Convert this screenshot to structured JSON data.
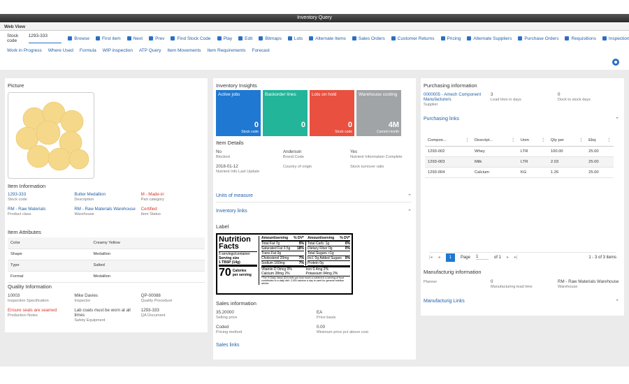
{
  "window": {
    "title": "Inventory Query",
    "tab": "Web View"
  },
  "toolbar": {
    "stock_code_label": "Stock code",
    "stock_code_value": "1293-333",
    "buttons": [
      "Browse",
      "First item",
      "Next",
      "Prev",
      "Find Stock Code",
      "Play",
      "Edit",
      "Bitmaps",
      "Lots",
      "Alternate Items",
      "Sales Orders",
      "Customer Returns",
      "Pricing",
      "Alternate Suppliers",
      "Purchase Orders",
      "Requisitions",
      "Inspection"
    ],
    "links": [
      "Work in Progress",
      "Where Used",
      "Formula",
      "WIP inspection",
      "ATP Query",
      "Item Movements",
      "Item Requirements",
      "Forecast"
    ]
  },
  "left": {
    "picture_title": "Picture",
    "item_information": {
      "title": "Item Information",
      "fields": [
        {
          "value": "1293-333",
          "label": "Stock code"
        },
        {
          "value": "Butter Medallion",
          "label": "Description"
        },
        {
          "value": "M - Made-in",
          "label": "Part category"
        },
        {
          "value": "RM - Raw Materials",
          "label": "Product class"
        },
        {
          "value": "RM - Raw Materials Warehouse",
          "label": "Warehouse"
        },
        {
          "value": "Certified",
          "label": "Item Status"
        }
      ]
    },
    "item_attributes": {
      "title": "Item Attributes",
      "rows": [
        [
          "Color",
          "Creamy Yellow"
        ],
        [
          "Shape",
          "Medallion"
        ],
        [
          "Type",
          "Salted"
        ],
        [
          "Format",
          "Medallion"
        ]
      ]
    },
    "quality": {
      "title": "Quality Information",
      "fields": [
        {
          "value": "10003",
          "label": "Inspection Specification"
        },
        {
          "value": "Mike Davies",
          "label": "Inspector"
        },
        {
          "value": "QP-00088",
          "label": "Quality Procedure"
        },
        {
          "value": "Ensure seals are seamed",
          "label": "Production Notes"
        },
        {
          "value": "Lab coats must be worn at all times",
          "label": "Safety Equipment"
        },
        {
          "value": "1293-333",
          "label": "QA Document"
        }
      ]
    }
  },
  "middle": {
    "title": "Inventory Insights",
    "tiles": [
      {
        "label": "Active jobs",
        "value": "0",
        "sub": "Stock code"
      },
      {
        "label": "Backorder lines",
        "value": "0"
      },
      {
        "label": "Lots on hold",
        "value": "0",
        "sub": "Stock code"
      },
      {
        "label": "Warehouse costing",
        "value": "4M",
        "sub": "Current month"
      }
    ],
    "item_details": {
      "title": "Item Details",
      "fields": [
        {
          "value": "No",
          "label": "Blocked"
        },
        {
          "value": "Anderson",
          "label": "Brand Code"
        },
        {
          "value": "Yes",
          "label": "Nutrient Information Complete"
        },
        {
          "value": "2018-01-12",
          "label": "Nutrient Info Last Update"
        },
        {
          "label": "Country of origin"
        },
        {
          "label": "Stock turnover ratio"
        }
      ]
    },
    "units_link": "Units of measure",
    "inventory_link": "Inventory links",
    "label_title": "Label",
    "nutrition": {
      "title": "Nutrition Facts",
      "servings": "5 servings/container",
      "serving_size": "Serving size",
      "serving_amount": "1 TBSP (14g)",
      "calories": "70",
      "calories_label": "Calories per serving",
      "amount_header": "Amount/serving",
      "dv_header": "% DV*",
      "left_rows": [
        [
          "Total Fat 7g",
          "9%"
        ],
        [
          "Saturated Fat 3.5g",
          "18%"
        ],
        [
          "Trans Fat 0g"
        ],
        [
          "Cholesterol 20mg",
          "7%"
        ],
        [
          "Sodium 160mg",
          "7%"
        ]
      ],
      "right_rows": [
        [
          "Total Carb. 1g",
          "0%"
        ],
        [
          "Dietary Fiber 0g",
          "0%"
        ],
        [
          "Total Sugars <1g"
        ],
        [
          "Incl. 0g Added Sugars",
          "0%"
        ],
        [
          "Protein 0g"
        ]
      ],
      "vitamins": [
        "Vitamin D 0mcg 0%",
        "Iron 0.4mg 2%",
        "Calcium 28mg 2%",
        "Potassium 94mg 2%"
      ],
      "footnote": "*The % Daily Value (DV) tells you how much a nutrient in a serving of food contributes to a daily diet. 2,000 calories a day is used for general nutrition advice."
    },
    "sales": {
      "title": "Sales information",
      "fields": [
        {
          "value": "35.20000",
          "label": "Selling price"
        },
        {
          "value": "EA",
          "label": "Price basis"
        },
        {
          "value": "Coded",
          "label": "Pricing method"
        },
        {
          "value": "0.00",
          "label": "Minimum price pct above cost"
        }
      ],
      "link": "Sales links"
    }
  },
  "right": {
    "title": "Purchasing information",
    "fields": [
      {
        "value": "0000005 - Amech Component Manufacturers",
        "label": "Supplier"
      },
      {
        "value": "3",
        "label": "Lead time in days"
      },
      {
        "value": "0",
        "label": "Dock to stock days"
      }
    ],
    "purchasing_link": "Purchasing links",
    "table": {
      "headers": [
        "Compon...",
        "Descript...",
        "Uom",
        "Qty per",
        "Ebq"
      ],
      "rows": [
        [
          "1293-002",
          "Whey",
          "LTR",
          "100.00",
          "25.00"
        ],
        [
          "1293-003",
          "Milk",
          "LTR",
          "2.03",
          "25.00"
        ],
        [
          "1293-004",
          "Calcium",
          "KG",
          "1.26",
          "25.00"
        ]
      ]
    },
    "pager": {
      "current": "1",
      "page_label": "Page",
      "page_value": "1",
      "of": "of 1",
      "summary": "1 - 3 of 3 items"
    },
    "manufacturing": {
      "title": "Manufacturig information",
      "fields": [
        {
          "label": "Planner"
        },
        {
          "value": "0",
          "label": "Manufacturing lead time"
        },
        {
          "value": "RM - Raw Materials Warehouse",
          "label": "Warehouse"
        }
      ],
      "link": "Manufacturig Links"
    }
  }
}
